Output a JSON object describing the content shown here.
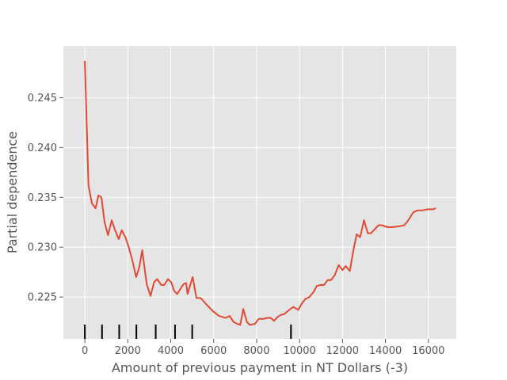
{
  "chart_data": {
    "type": "line",
    "title": "",
    "xlabel": "Amount of previous payment in NT Dollars (-3)",
    "ylabel": "Partial dependence",
    "xlim": [
      -1000,
      17300
    ],
    "ylim": [
      0.2208,
      0.2502
    ],
    "xticks": [
      0,
      2000,
      4000,
      6000,
      8000,
      10000,
      12000,
      14000,
      16000
    ],
    "xtick_labels": [
      "0",
      "2000",
      "4000",
      "6000",
      "8000",
      "10000",
      "12000",
      "14000",
      "16000"
    ],
    "yticks": [
      0.225,
      0.23,
      0.235,
      0.24,
      0.245
    ],
    "ytick_labels": [
      "0.225",
      "0.230",
      "0.235",
      "0.240",
      "0.245"
    ],
    "grid": true,
    "line_color": "#E24A33",
    "background_color": "#E5E5E5",
    "rug_color": "#000000",
    "rug_x": [
      0,
      800,
      1600,
      2400,
      3300,
      4200,
      5000,
      9600
    ],
    "series": [
      {
        "x": [
          0,
          170,
          330,
          500,
          630,
          770,
          920,
          1080,
          1250,
          1390,
          1580,
          1720,
          1890,
          2060,
          2220,
          2390,
          2540,
          2670,
          2880,
          3060,
          3230,
          3370,
          3560,
          3700,
          3870,
          4020,
          4160,
          4300,
          4480,
          4600,
          4720,
          4780,
          5020,
          5200,
          5370,
          5480,
          5640,
          5950,
          6250,
          6550,
          6740,
          6920,
          7100,
          7240,
          7380,
          7550,
          7680,
          7920,
          8100,
          8310,
          8470,
          8660,
          8810,
          8980,
          9130,
          9300,
          9520,
          9710,
          9940,
          10120,
          10270,
          10460,
          10650,
          10800,
          10960,
          11140,
          11310,
          11470,
          11640,
          11820,
          12000,
          12150,
          12340,
          12500,
          12660,
          12820,
          13000,
          13180,
          13330,
          13500,
          13680,
          13830,
          14100,
          14320,
          14640,
          14880,
          15030,
          15300,
          15500,
          15720,
          15970,
          16200,
          16350
        ],
        "y": [
          0.2487,
          0.2362,
          0.2344,
          0.2339,
          0.2352,
          0.235,
          0.2325,
          0.2312,
          0.2327,
          0.2318,
          0.2308,
          0.2317,
          0.231,
          0.2299,
          0.2286,
          0.227,
          0.228,
          0.2297,
          0.2263,
          0.2251,
          0.2265,
          0.2268,
          0.2262,
          0.2262,
          0.2268,
          0.2265,
          0.2256,
          0.2253,
          0.2259,
          0.2263,
          0.2264,
          0.2253,
          0.227,
          0.2249,
          0.2249,
          0.2247,
          0.2243,
          0.2236,
          0.2231,
          0.2229,
          0.2231,
          0.2225,
          0.2223,
          0.2222,
          0.2238,
          0.2225,
          0.2222,
          0.2223,
          0.2228,
          0.2228,
          0.2229,
          0.2229,
          0.2226,
          0.223,
          0.2232,
          0.2233,
          0.2237,
          0.224,
          0.2237,
          0.2244,
          0.2248,
          0.225,
          0.2255,
          0.2261,
          0.2262,
          0.2262,
          0.2267,
          0.2267,
          0.2272,
          0.2282,
          0.2277,
          0.2281,
          0.2276,
          0.2296,
          0.2313,
          0.231,
          0.2327,
          0.2314,
          0.2314,
          0.2318,
          0.2322,
          0.2322,
          0.232,
          0.232,
          0.2321,
          0.2322,
          0.2326,
          0.2335,
          0.2337,
          0.2337,
          0.2338,
          0.2338,
          0.2339
        ]
      }
    ]
  }
}
